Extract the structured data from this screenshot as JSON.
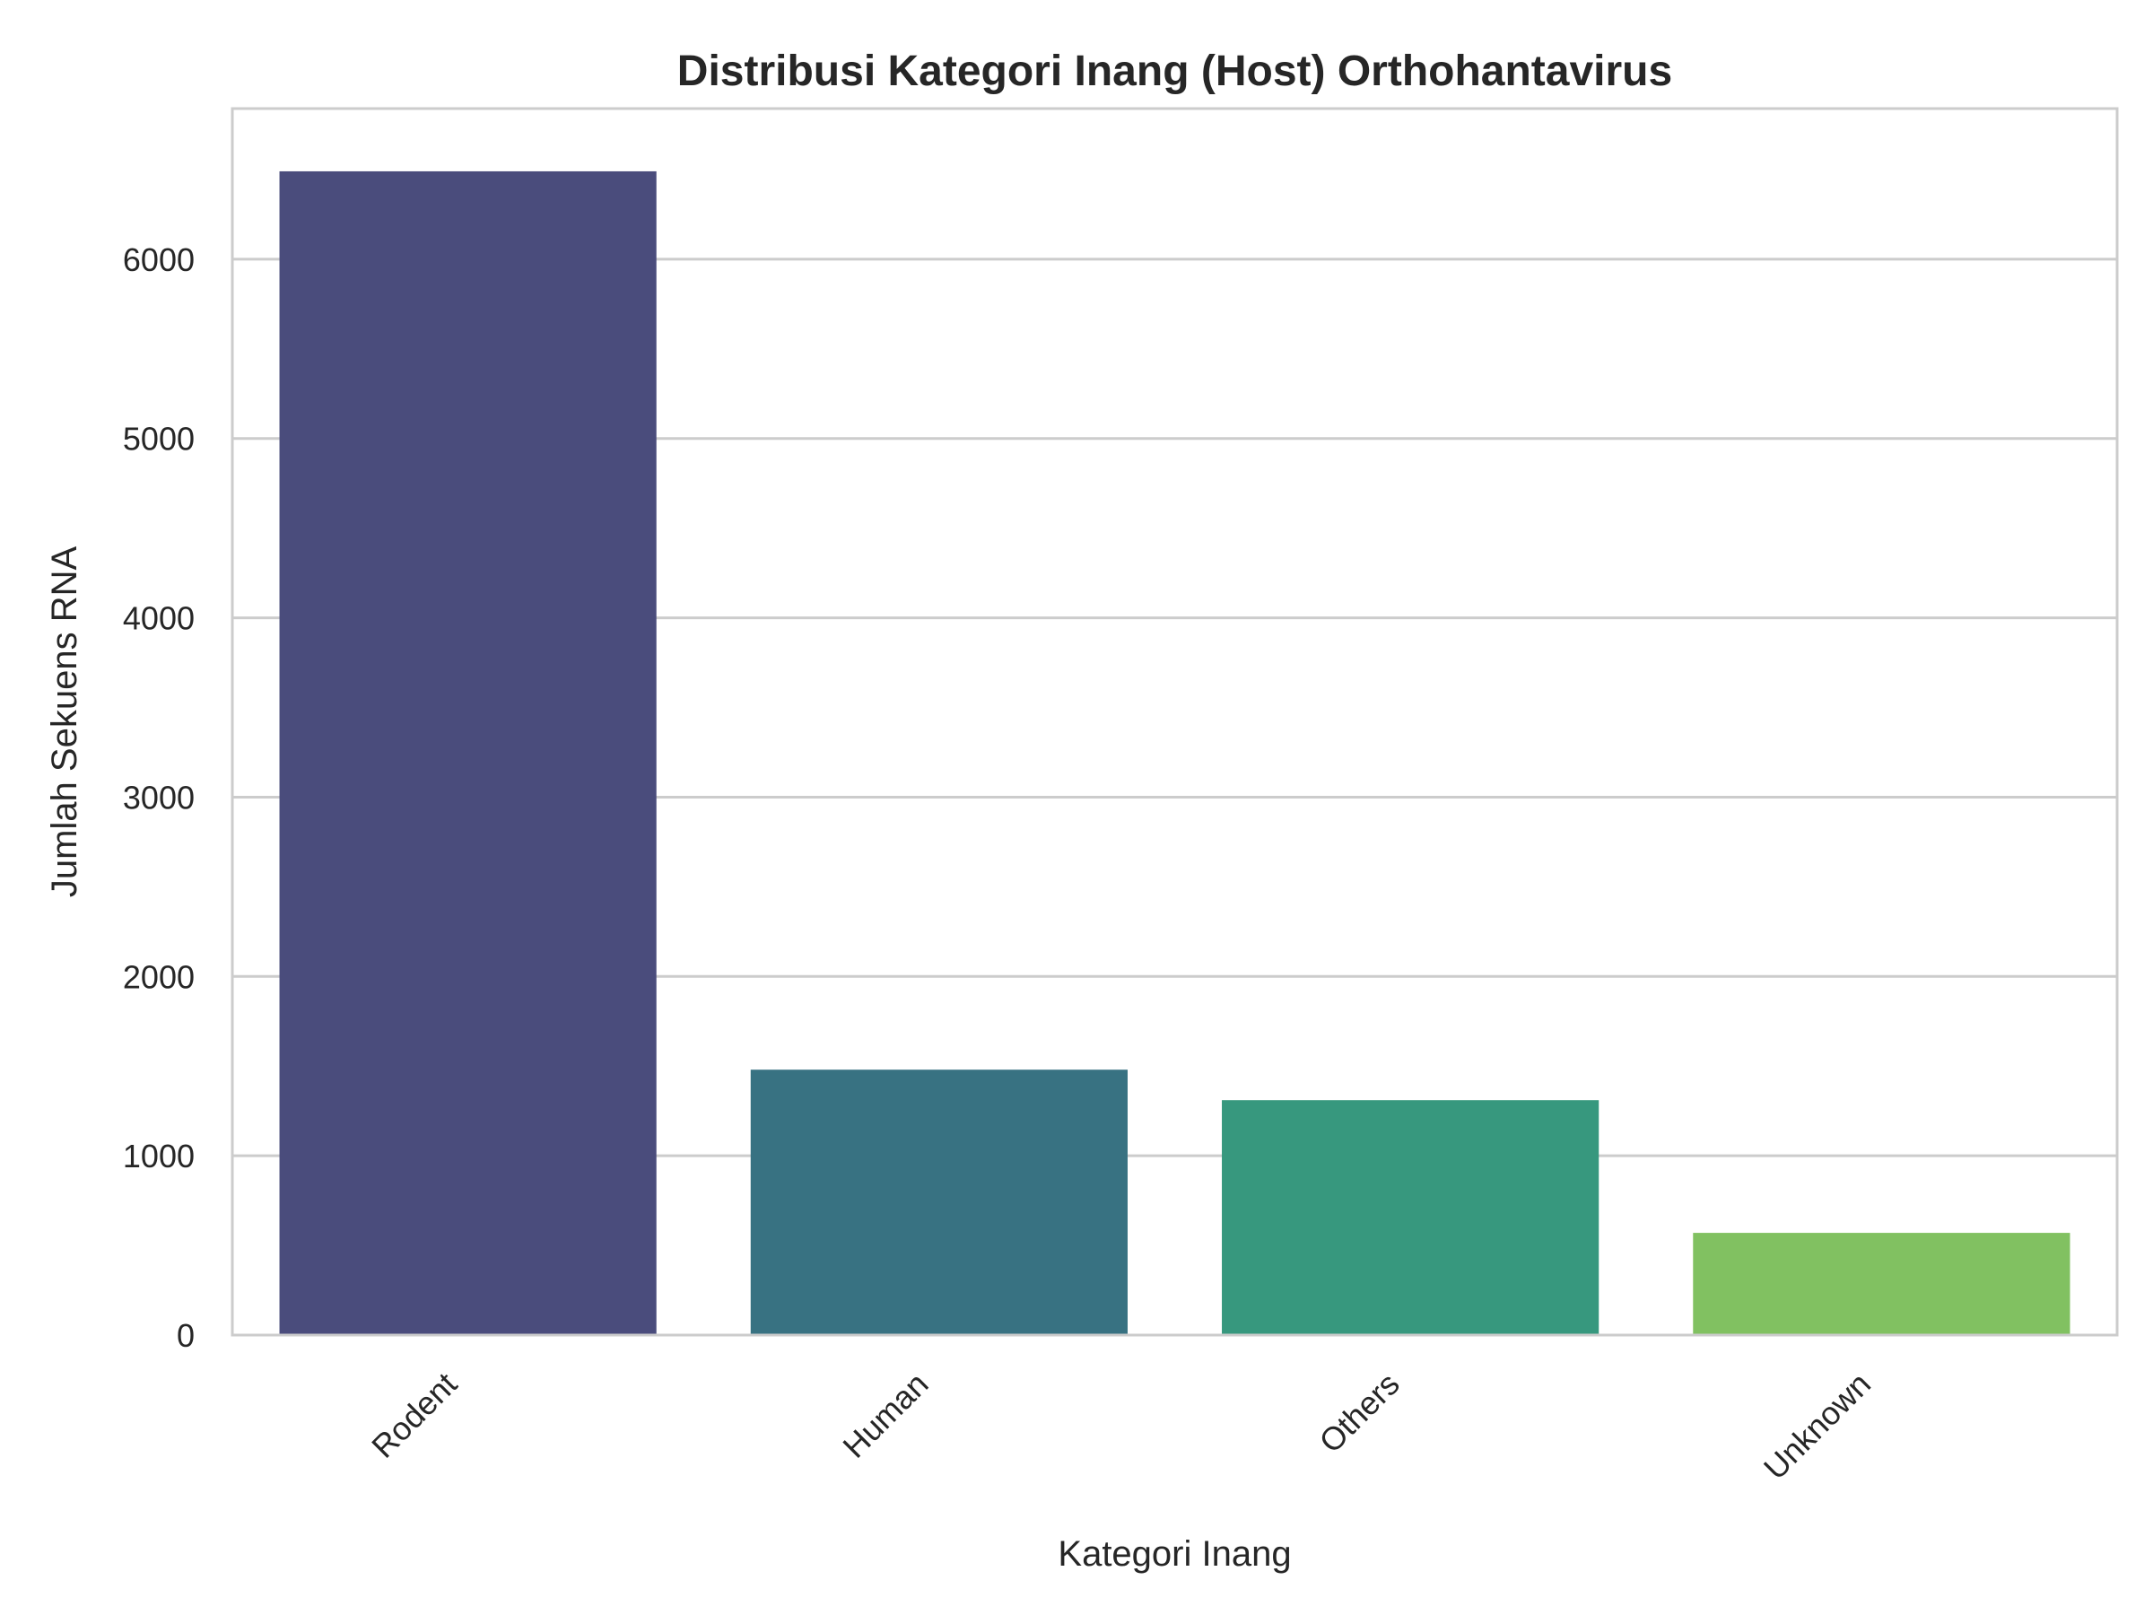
{
  "chart_data": {
    "type": "bar",
    "title": "Distribusi Kategori Inang (Host) Orthohantavirus",
    "xlabel": "Kategori Inang",
    "ylabel": "Jumlah Sekuens RNA",
    "categories": [
      "Rodent",
      "Human",
      "Others",
      "Unknown"
    ],
    "values": [
      6490,
      1480,
      1310,
      570
    ],
    "colors": [
      "#4a4c7c",
      "#387282",
      "#37987e",
      "#81c161"
    ],
    "ylim": [
      0,
      6840
    ],
    "yticks": [
      0,
      1000,
      2000,
      3000,
      4000,
      5000,
      6000
    ],
    "grid": true,
    "grid_axis": "y",
    "background": "#ffffff",
    "frame_color": "#cccccc",
    "grid_color": "#cccccc"
  }
}
